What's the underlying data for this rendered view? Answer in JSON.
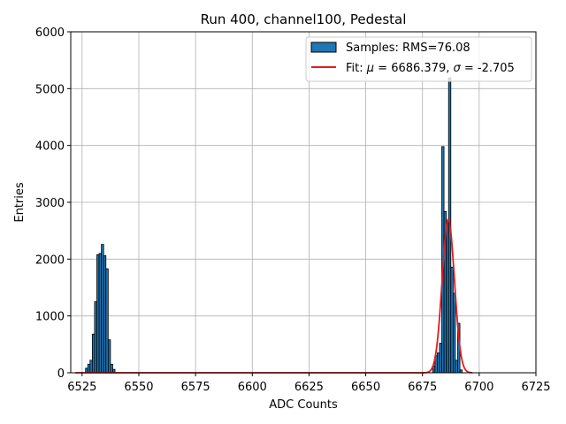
{
  "chart_data": {
    "type": "bar",
    "title": "Run 400, channel100, Pedestal",
    "xlabel": "ADC Counts",
    "ylabel": "Entries",
    "xlim": [
      6520,
      6725
    ],
    "ylim": [
      0,
      6000
    ],
    "xticks": [
      6525,
      6550,
      6575,
      6600,
      6625,
      6650,
      6675,
      6700,
      6725
    ],
    "yticks": [
      0,
      1000,
      2000,
      3000,
      4000,
      5000,
      6000
    ],
    "grid": true,
    "legend_position": "top-right",
    "colors": {
      "bar_fill": "#1f77b4",
      "bar_edge": "#000000",
      "fit_line": "#e41a1c"
    },
    "histogram": {
      "name": "Samples: RMS=76.08",
      "bin_width": 1,
      "bins": [
        {
          "x": 6527,
          "y": 80
        },
        {
          "x": 6528,
          "y": 150
        },
        {
          "x": 6529,
          "y": 220
        },
        {
          "x": 6530,
          "y": 680
        },
        {
          "x": 6531,
          "y": 1250
        },
        {
          "x": 6532,
          "y": 2080
        },
        {
          "x": 6533,
          "y": 2100
        },
        {
          "x": 6534,
          "y": 2260
        },
        {
          "x": 6535,
          "y": 2060
        },
        {
          "x": 6536,
          "y": 1830
        },
        {
          "x": 6537,
          "y": 580
        },
        {
          "x": 6538,
          "y": 150
        },
        {
          "x": 6539,
          "y": 60
        },
        {
          "x": 6680,
          "y": 120
        },
        {
          "x": 6681,
          "y": 300
        },
        {
          "x": 6682,
          "y": 350
        },
        {
          "x": 6683,
          "y": 520
        },
        {
          "x": 6684,
          "y": 3980
        },
        {
          "x": 6685,
          "y": 2840
        },
        {
          "x": 6686,
          "y": 2650
        },
        {
          "x": 6687,
          "y": 5190
        },
        {
          "x": 6688,
          "y": 1860
        },
        {
          "x": 6689,
          "y": 1400
        },
        {
          "x": 6690,
          "y": 220
        },
        {
          "x": 6691,
          "y": 870
        },
        {
          "x": 6692,
          "y": 50
        }
      ]
    },
    "fit": {
      "name": "Fit: μ = 6686.379, σ = -2.705",
      "mu": 6686.379,
      "sigma": 2.705,
      "amplitude": 2700,
      "x_range": [
        6522,
        6697
      ]
    }
  },
  "legend": {
    "samples_label": "Samples: RMS=76.08",
    "fit_prefix": "Fit: ",
    "fit_mu_symbol": "μ",
    "fit_mu_value": " = 6686.379, ",
    "fit_sigma_symbol": "σ",
    "fit_sigma_value": " = -2.705"
  }
}
